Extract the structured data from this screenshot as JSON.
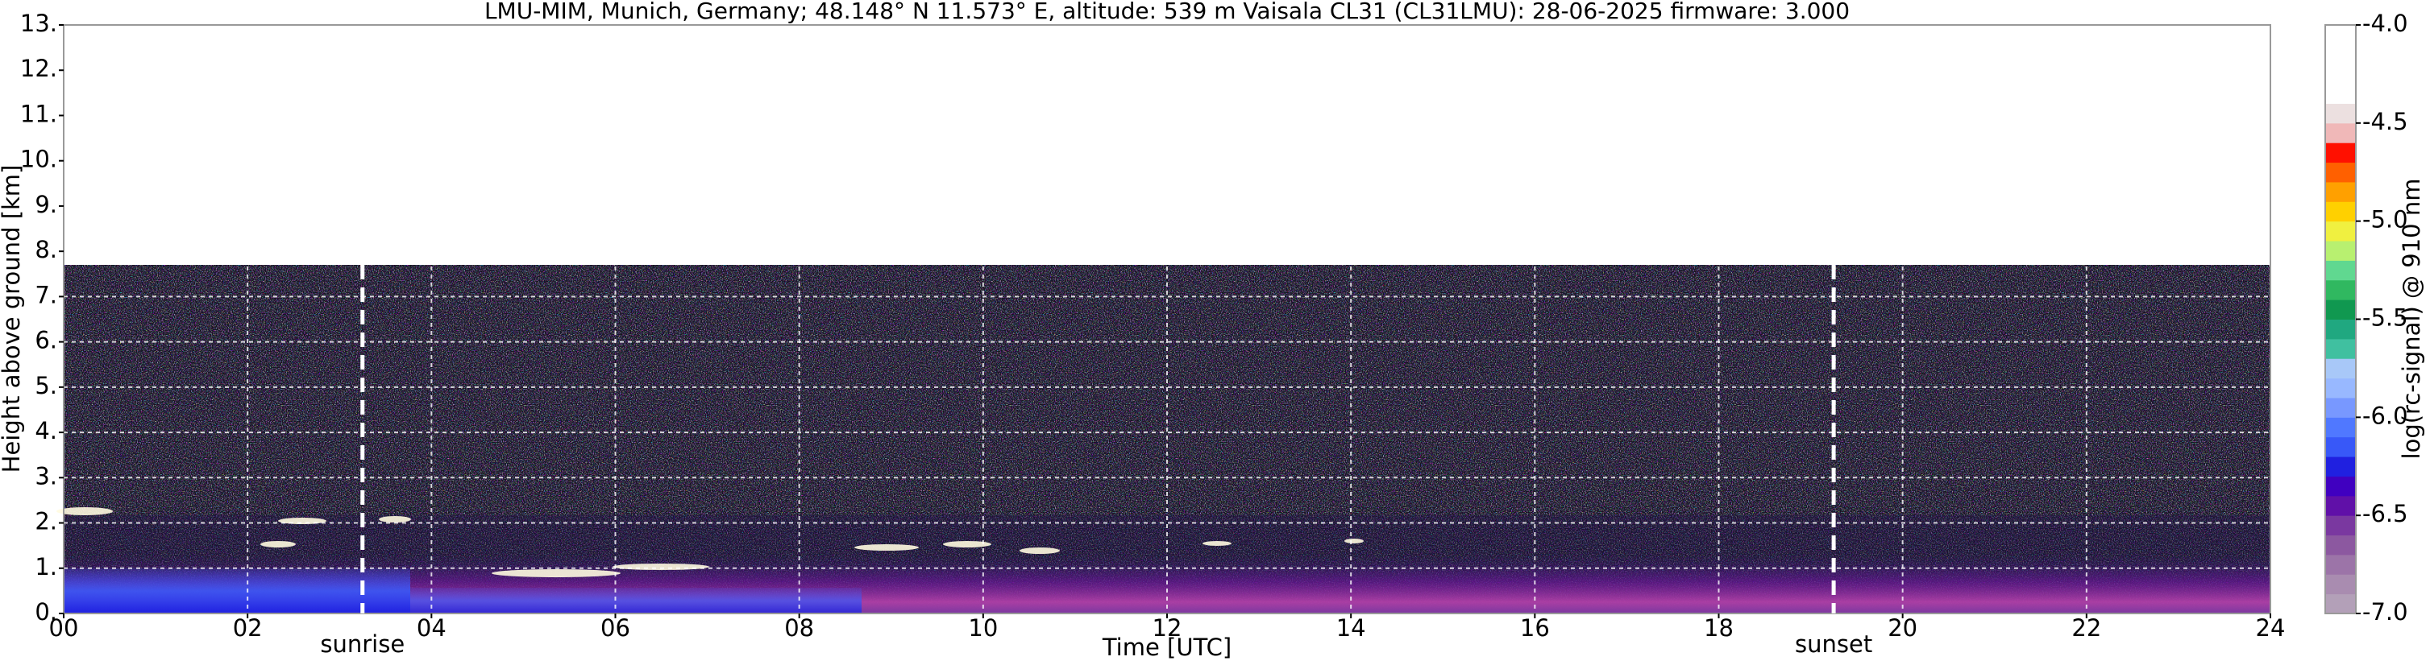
{
  "chart_data": {
    "type": "heatmap",
    "title": "LMU-MIM, Munich, Germany; 48.148° N 11.573° E, altitude: 539 m    Vaisala CL31 (CL31LMU): 28-06-2025    firmware: 3.000",
    "x_label": "Time [UTC]",
    "y_label": "Height above ground [km]",
    "xlim": [
      0,
      24
    ],
    "xticks": [
      {
        "value": 0,
        "label": "00"
      },
      {
        "value": 2,
        "label": "02"
      },
      {
        "value": 4,
        "label": "04"
      },
      {
        "value": 6,
        "label": "06"
      },
      {
        "value": 8,
        "label": "08"
      },
      {
        "value": 10,
        "label": "10"
      },
      {
        "value": 12,
        "label": "12"
      },
      {
        "value": 14,
        "label": "14"
      },
      {
        "value": 16,
        "label": "16"
      },
      {
        "value": 18,
        "label": "18"
      },
      {
        "value": 20,
        "label": "20"
      },
      {
        "value": 22,
        "label": "22"
      },
      {
        "value": 24,
        "label": "24"
      }
    ],
    "ylim": [
      0,
      13
    ],
    "yticks": [
      {
        "value": 0,
        "label": "0."
      },
      {
        "value": 1,
        "label": "1."
      },
      {
        "value": 2,
        "label": "2."
      },
      {
        "value": 3,
        "label": "3."
      },
      {
        "value": 4,
        "label": "4."
      },
      {
        "value": 5,
        "label": "5."
      },
      {
        "value": 6,
        "label": "6."
      },
      {
        "value": 7,
        "label": "7."
      },
      {
        "value": 8,
        "label": "8."
      },
      {
        "value": 9,
        "label": "9."
      },
      {
        "value": 10,
        "label": "10."
      },
      {
        "value": 11,
        "label": "11."
      },
      {
        "value": 12,
        "label": "12."
      },
      {
        "value": 13,
        "label": "13."
      }
    ],
    "grid": true,
    "annotations": [
      {
        "label": "sunrise",
        "x": 3.25
      },
      {
        "label": "sunset",
        "x": 19.25
      }
    ],
    "colorbar": {
      "label": "log(rc-signal) @ 910 nm",
      "lim": [
        -7,
        -4
      ],
      "ticks": [
        {
          "value": -4,
          "label": "-4.0"
        },
        {
          "value": -4.5,
          "label": "-4.5"
        },
        {
          "value": -5,
          "label": "-5.0"
        },
        {
          "value": -5.5,
          "label": "-5.5"
        },
        {
          "value": -6,
          "label": "-6.0"
        },
        {
          "value": -6.5,
          "label": "-6.5"
        },
        {
          "value": -7,
          "label": "-7.0"
        }
      ],
      "colors": [
        "#b3a0b8",
        "#a98cb0",
        "#9c74a8",
        "#8c58a0",
        "#7a38a0",
        "#6010a8",
        "#4000c0",
        "#2020e0",
        "#3858f8",
        "#5078ff",
        "#7898ff",
        "#98b8ff",
        "#a8c8f8",
        "#40c0a0",
        "#20a880",
        "#109850",
        "#30b860",
        "#60d890",
        "#b8f070",
        "#f0f040",
        "#ffd000",
        "#ffa000",
        "#ff6000",
        "#ff1000",
        "#f0b8b8",
        "#ece0e0",
        "#ffffff",
        "#ffffff",
        "#ffffff",
        "#ffffff"
      ]
    }
  }
}
